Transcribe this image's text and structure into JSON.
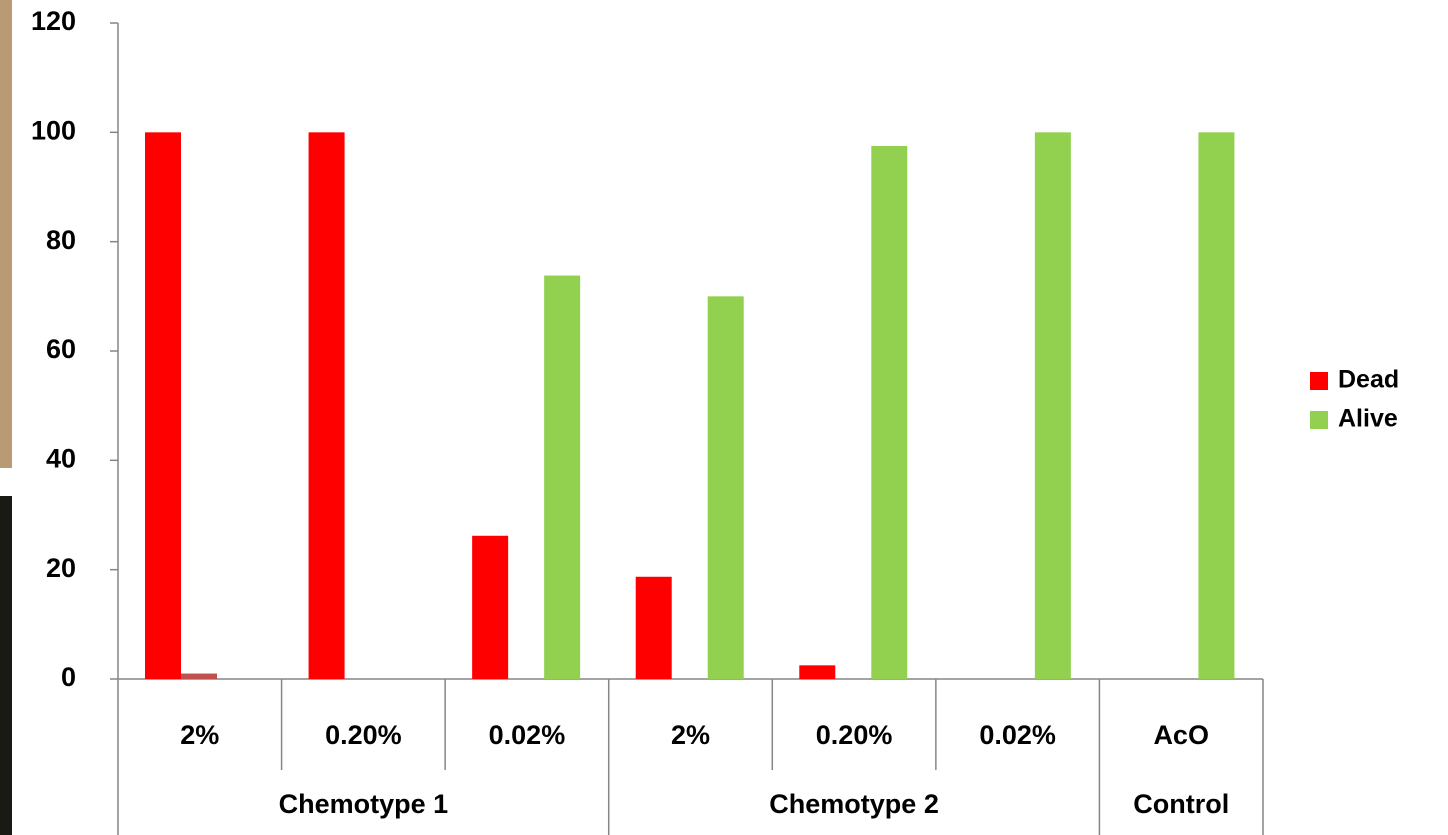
{
  "chart_data": {
    "type": "bar",
    "groups": [
      {
        "name": "Chemotype 1",
        "categories": [
          "2%",
          "0.20%",
          "0.02%"
        ]
      },
      {
        "name": "Chemotype 2",
        "categories": [
          "2%",
          "0.20%",
          "0.02%"
        ]
      },
      {
        "name": "Control",
        "categories": [
          "AcO"
        ]
      }
    ],
    "series": [
      {
        "name": "Dead",
        "color": "#ff0000",
        "values": [
          100,
          100,
          26.2,
          18.7,
          2.5,
          0,
          0
        ]
      },
      {
        "name": null,
        "color": "#c0504d",
        "values": [
          1,
          null,
          null,
          null,
          null,
          null,
          null
        ]
      },
      {
        "name": "Alive",
        "color": "#92d050",
        "values": [
          null,
          0,
          73.8,
          70,
          97.5,
          100,
          100
        ]
      }
    ],
    "ylim": [
      0,
      120
    ],
    "yticks": [
      0,
      20,
      40,
      60,
      80,
      100,
      120
    ],
    "grid": false,
    "legend": "right"
  }
}
